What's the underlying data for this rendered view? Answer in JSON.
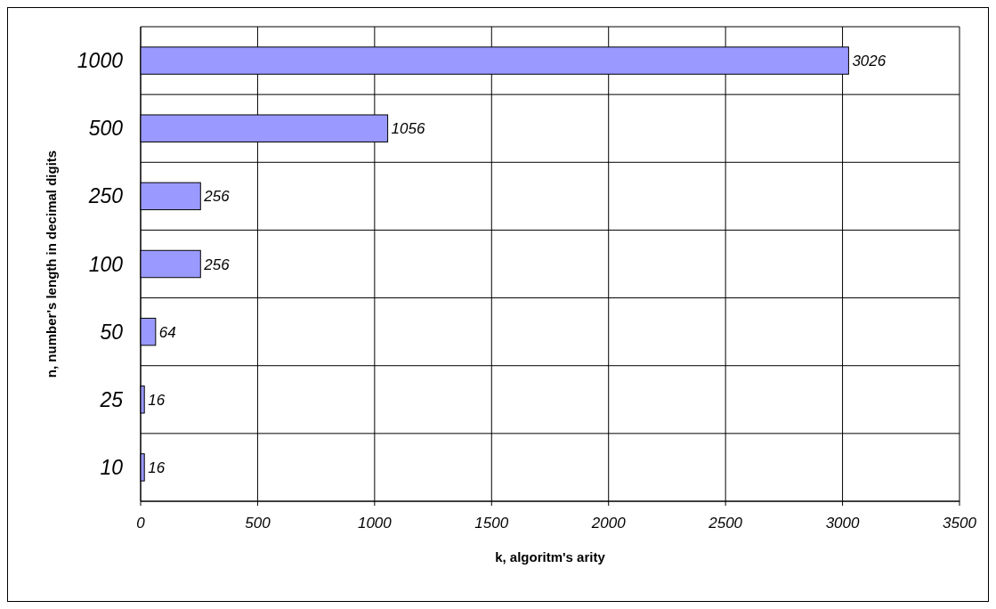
{
  "chart_data": {
    "type": "bar",
    "orientation": "horizontal",
    "xlabel": "k, algoritm's arity",
    "ylabel": "n, number's length in decimal digits",
    "categories": [
      "1000",
      "500",
      "250",
      "100",
      "50",
      "25",
      "10"
    ],
    "values": [
      3026,
      1056,
      256,
      256,
      64,
      16,
      16
    ],
    "color": "#9999ff",
    "xlim": [
      0,
      3500
    ],
    "xticks": [
      0,
      500,
      1000,
      1500,
      2000,
      2500,
      3000,
      3500
    ],
    "grid": true,
    "data_labels": true
  }
}
